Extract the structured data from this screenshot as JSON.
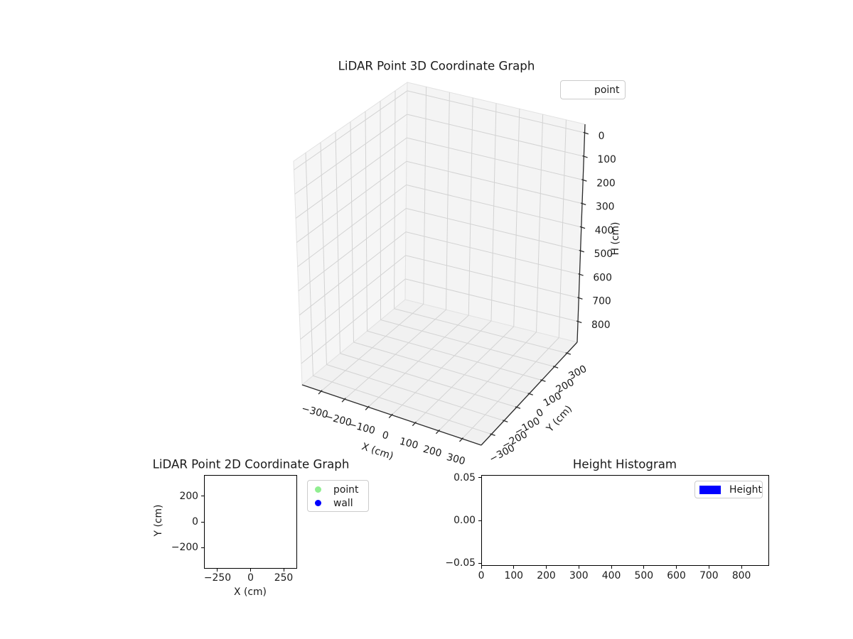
{
  "figure": {
    "background": "#ffffff",
    "text_color": "#1a1a1a",
    "grid_color": "#d3d3d3",
    "pane_edge_color": "#e2e2e2",
    "axis_line_color": "#2a2a2a"
  },
  "chart_data": [
    {
      "id": "lidar_3d",
      "type": "scatter",
      "projection": "3d",
      "title": "LiDAR Point 3D Coordinate Graph",
      "xlabel": "X (cm)",
      "ylabel": "Y (cm)",
      "zlabel": "H (cm)",
      "xticks": [
        -300,
        -200,
        -100,
        0,
        100,
        200,
        300
      ],
      "xtick_labels": [
        "−300",
        "−200",
        "−100",
        "0",
        "100",
        "200",
        "300"
      ],
      "yticks": [
        -300,
        -200,
        -100,
        0,
        100,
        200,
        300
      ],
      "ytick_labels": [
        "−300",
        "−200",
        "−100",
        "0",
        "100",
        "200",
        "300"
      ],
      "zticks": [
        0,
        100,
        200,
        300,
        400,
        500,
        600,
        700,
        800
      ],
      "ztick_labels": [
        "0",
        "100",
        "200",
        "300",
        "400",
        "500",
        "600",
        "700",
        "800"
      ],
      "xlim": [
        -381,
        381
      ],
      "ylim": [
        -381,
        381
      ],
      "zlim": [
        -36,
        888
      ],
      "zaxis_inverted": true,
      "grid": true,
      "legend": {
        "position": "upper right",
        "entries": [
          {
            "label": "point",
            "marker": "none",
            "color": "none"
          }
        ]
      },
      "series": [
        {
          "name": "point",
          "points": []
        }
      ]
    },
    {
      "id": "lidar_2d",
      "type": "scatter",
      "title": "LiDAR Point 2D Coordinate Graph",
      "xlabel": "X (cm)",
      "ylabel": "Y (cm)",
      "xticks": [
        -250,
        0,
        250
      ],
      "xtick_labels": [
        "−250",
        "0",
        "250"
      ],
      "yticks": [
        -200,
        0,
        200
      ],
      "ytick_labels": [
        "−200",
        "0",
        "200"
      ],
      "xlim": [
        -352,
        352
      ],
      "ylim": [
        -362,
        362
      ],
      "grid": false,
      "legend": {
        "position": "right of axes",
        "entries": [
          {
            "label": "point",
            "marker": "circle",
            "color": "#90ee90"
          },
          {
            "label": "wall",
            "marker": "circle",
            "color": "#0000ff"
          }
        ]
      },
      "series": [
        {
          "name": "point",
          "points": []
        },
        {
          "name": "wall",
          "points": []
        }
      ]
    },
    {
      "id": "height_histogram",
      "type": "bar",
      "title": "Height Histogram",
      "xlabel": "",
      "ylabel": "",
      "xticks": [
        0,
        100,
        200,
        300,
        400,
        500,
        600,
        700,
        800
      ],
      "xtick_labels": [
        "0",
        "100",
        "200",
        "300",
        "400",
        "500",
        "600",
        "700",
        "800"
      ],
      "yticks": [
        -0.05,
        0.0,
        0.05
      ],
      "ytick_labels": [
        "−0.05",
        "0.00",
        "0.05"
      ],
      "xlim": [
        0,
        885
      ],
      "ylim": [
        -0.0533,
        0.0533
      ],
      "grid": false,
      "legend": {
        "position": "upper right",
        "entries": [
          {
            "label": "Height",
            "marker": "rect",
            "color": "#0000ff"
          }
        ]
      },
      "values": []
    }
  ]
}
